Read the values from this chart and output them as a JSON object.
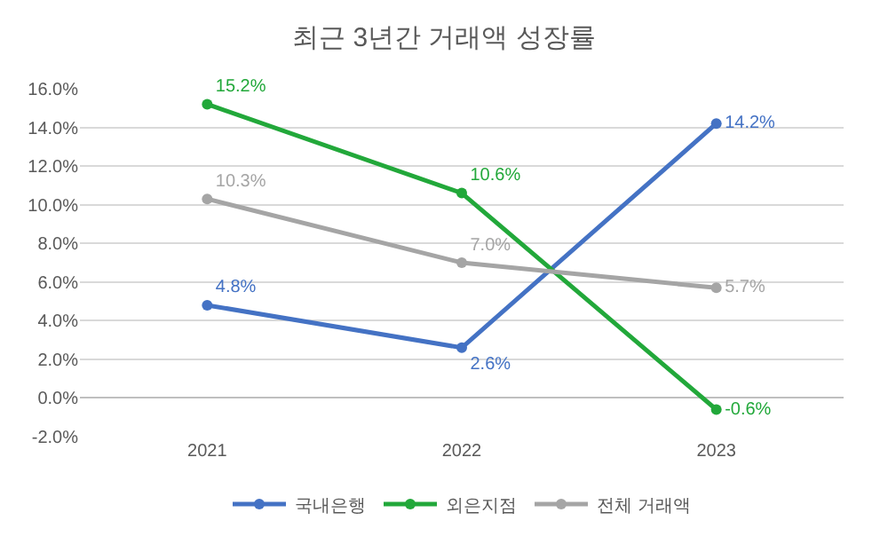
{
  "chart_data": {
    "type": "line",
    "title": "최근 3년간 거래액 성장률",
    "categories": [
      "2021",
      "2022",
      "2023"
    ],
    "series": [
      {
        "name": "국내은행",
        "color": "#4472c4",
        "values": [
          4.8,
          2.6,
          14.2
        ],
        "value_labels": [
          "4.8%",
          "2.6%",
          "14.2%"
        ]
      },
      {
        "name": "외은지점",
        "color": "#22a83a",
        "values": [
          15.2,
          10.6,
          -0.6
        ],
        "value_labels": [
          "15.2%",
          "10.6%",
          "-0.6%"
        ]
      },
      {
        "name": "전체 거래액",
        "color": "#a5a5a5",
        "values": [
          10.3,
          7.0,
          5.7
        ],
        "value_labels": [
          "10.3%",
          "7.0%",
          "5.7%"
        ]
      }
    ],
    "ylim": [
      -2,
      16
    ],
    "yticks": [
      {
        "value": -2,
        "label": "-2.0%"
      },
      {
        "value": 0,
        "label": "0.0%"
      },
      {
        "value": 2,
        "label": "2.0%"
      },
      {
        "value": 4,
        "label": "4.0%"
      },
      {
        "value": 6,
        "label": "6.0%"
      },
      {
        "value": 8,
        "label": "8.0%"
      },
      {
        "value": 10,
        "label": "10.0%"
      },
      {
        "value": 12,
        "label": "12.0%"
      },
      {
        "value": 14,
        "label": "14.0%"
      },
      {
        "value": 16,
        "label": "16.0%"
      }
    ],
    "grid": "y",
    "legend": "bottom",
    "marker": "circle",
    "line_style": "solid"
  }
}
